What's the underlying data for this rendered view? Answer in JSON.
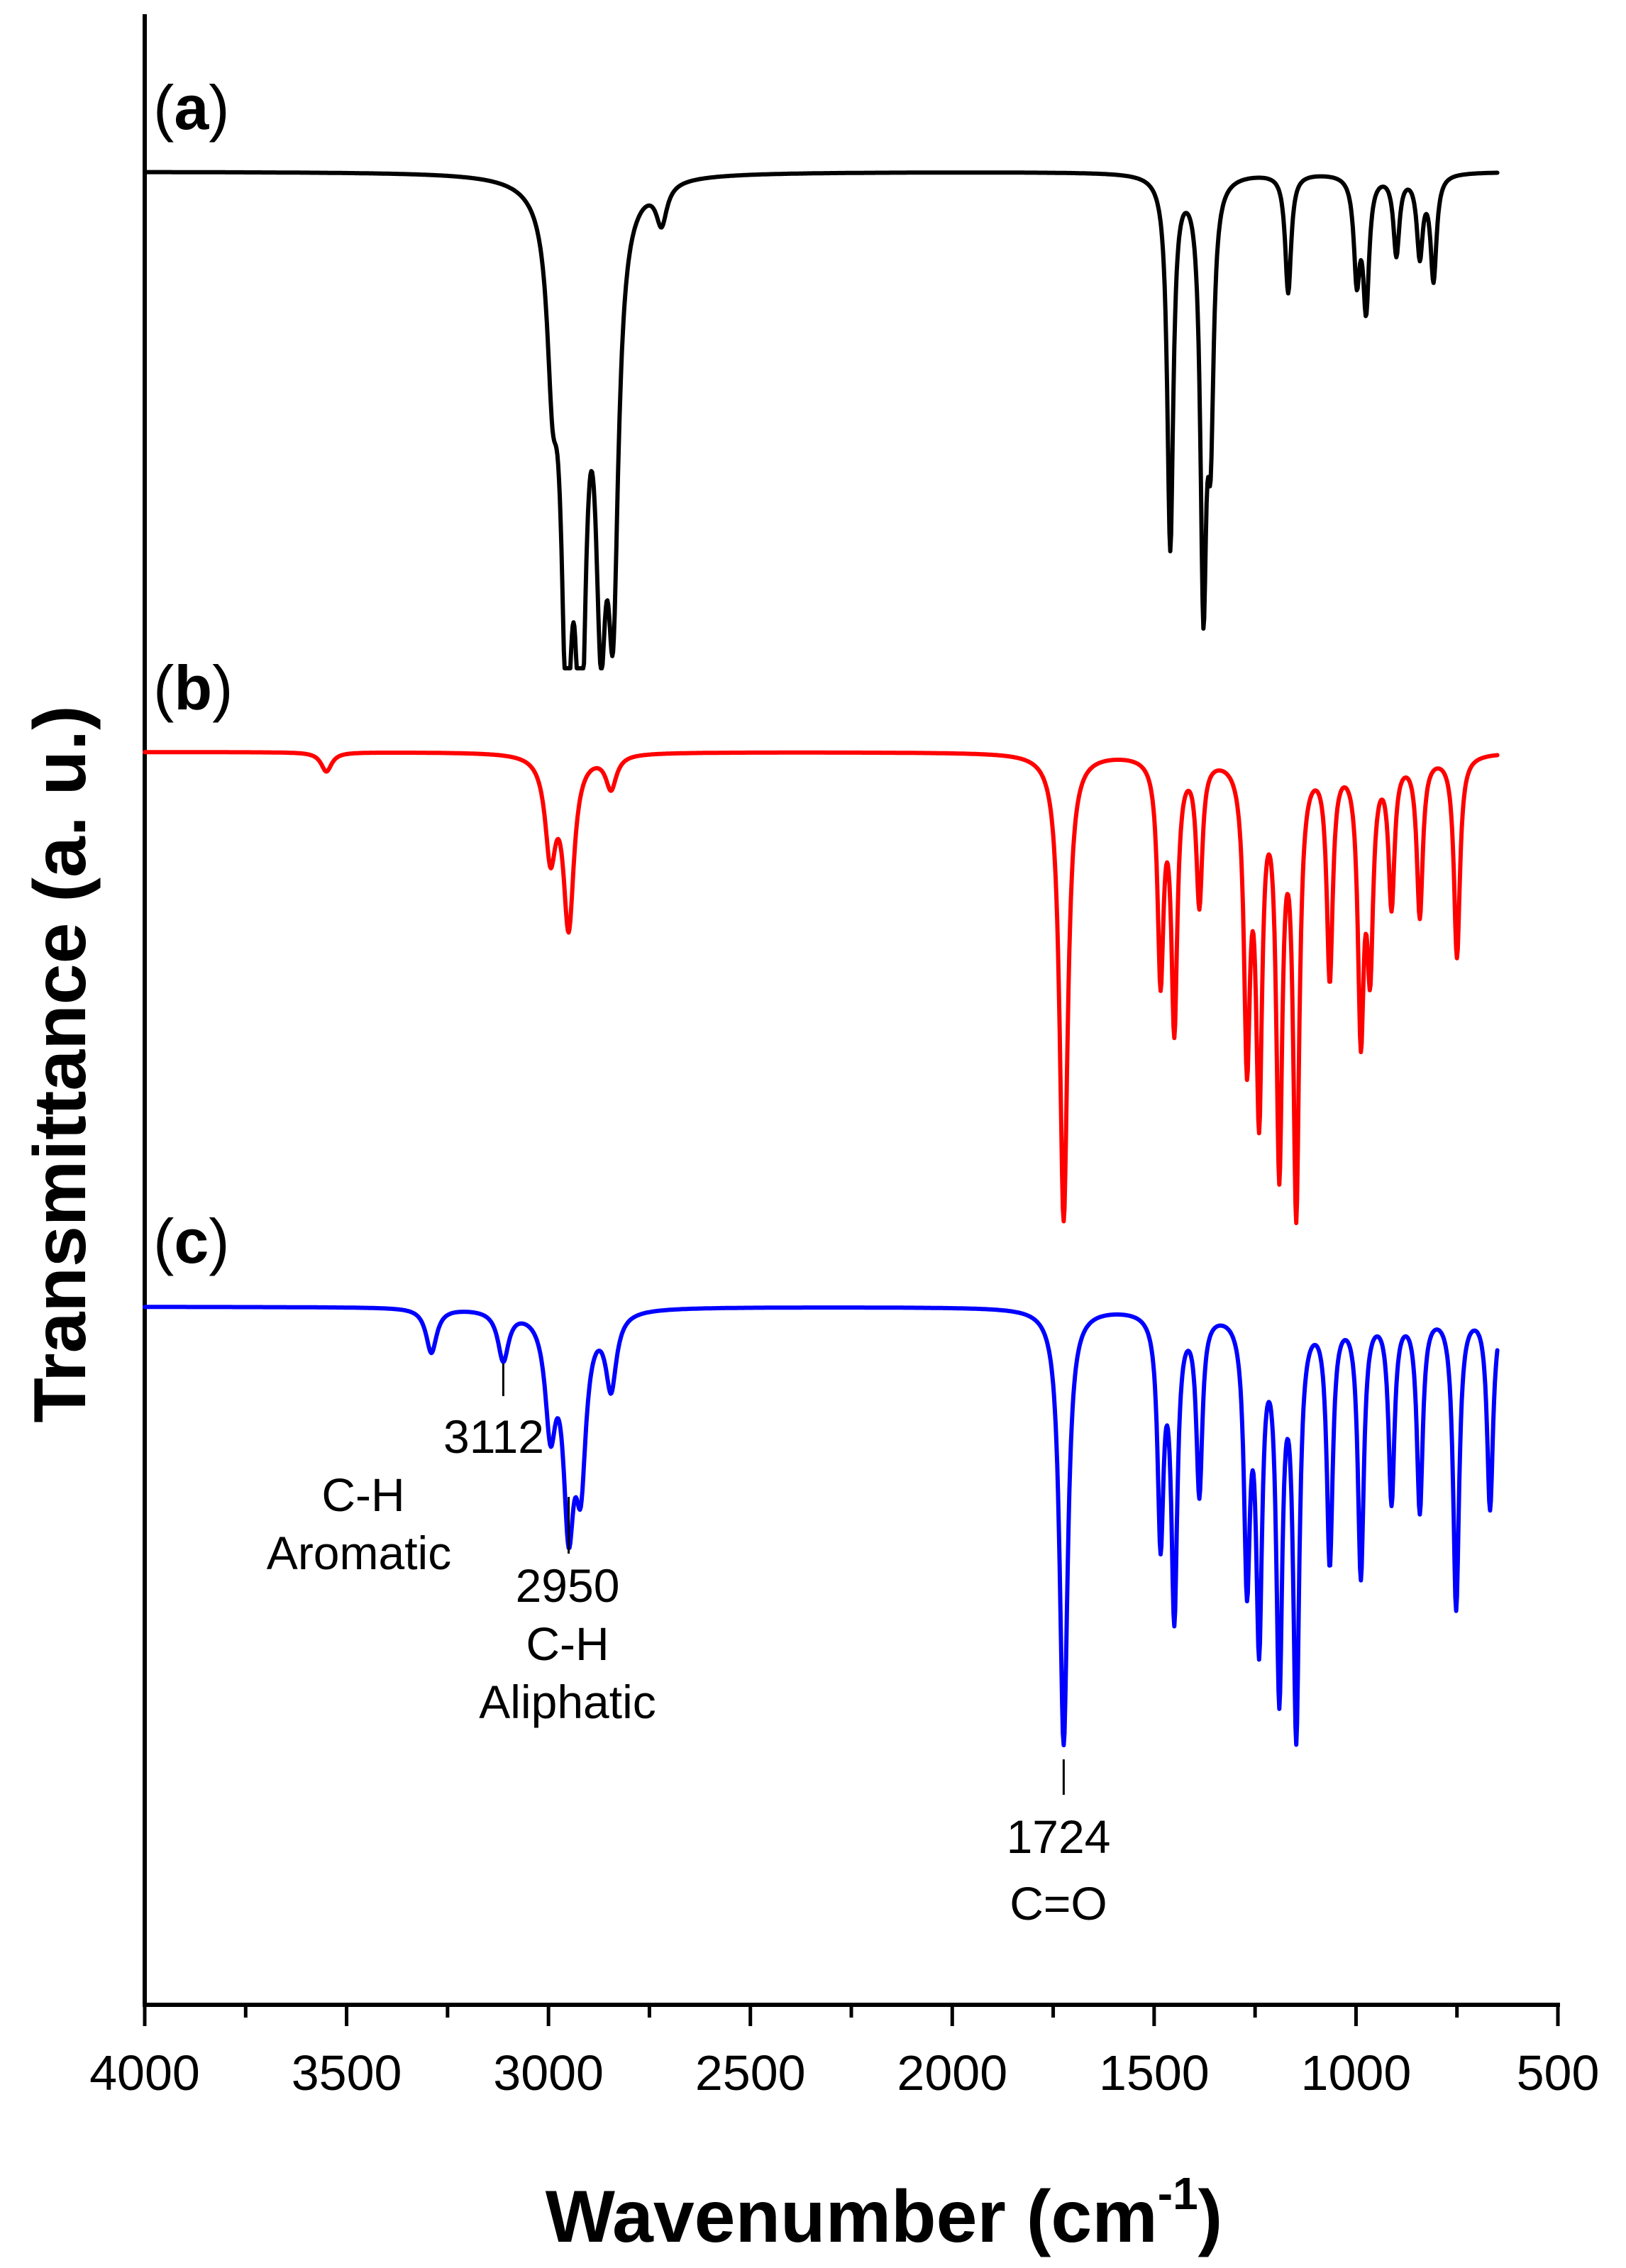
{
  "chart_data": {
    "type": "line",
    "title": "",
    "xlabel": "Wavenumber",
    "xlabel_unit_base": "(cm",
    "xlabel_unit_exp": "-1",
    "xlabel_unit_close": ")",
    "ylabel": "Transmittance (a. u.)",
    "xlim": [
      4000,
      500
    ],
    "x_reversed": true,
    "x_ticks": [
      4000,
      3500,
      3000,
      2500,
      2000,
      1500,
      1000,
      500
    ],
    "x_tick_labels": [
      "4000",
      "3500",
      "3000",
      "2500",
      "2000",
      "1500",
      "1000",
      "500"
    ],
    "y_ticks_shown": false,
    "grid": false,
    "series": [
      {
        "name": "(a)",
        "label_text": "a",
        "color": "#000000",
        "baseline": 0.0,
        "x_start": 4000,
        "x_end": 650,
        "peaks": [
          {
            "x": 2955,
            "depth": 0.88
          },
          {
            "x": 2920,
            "depth": 0.93
          },
          {
            "x": 2870,
            "depth": 0.72
          },
          {
            "x": 2840,
            "depth": 0.75
          },
          {
            "x": 2990,
            "depth": 0.3
          },
          {
            "x": 2720,
            "depth": 0.08
          },
          {
            "x": 1460,
            "depth": 0.75
          },
          {
            "x": 1378,
            "depth": 0.82
          },
          {
            "x": 1360,
            "depth": 0.45
          },
          {
            "x": 1168,
            "depth": 0.24
          },
          {
            "x": 998,
            "depth": 0.2
          },
          {
            "x": 975,
            "depth": 0.26
          },
          {
            "x": 900,
            "depth": 0.16
          },
          {
            "x": 842,
            "depth": 0.16
          },
          {
            "x": 808,
            "depth": 0.21
          }
        ]
      },
      {
        "name": "(b)",
        "label_text": "b",
        "color": "#ff0000",
        "baseline": 0.0,
        "x_start": 4000,
        "x_end": 650,
        "peaks": [
          {
            "x": 3550,
            "depth": 0.04
          },
          {
            "x": 2995,
            "depth": 0.2
          },
          {
            "x": 2950,
            "depth": 0.35
          },
          {
            "x": 2845,
            "depth": 0.07
          },
          {
            "x": 1724,
            "depth": 0.97
          },
          {
            "x": 1484,
            "depth": 0.45
          },
          {
            "x": 1450,
            "depth": 0.55
          },
          {
            "x": 1388,
            "depth": 0.3
          },
          {
            "x": 1270,
            "depth": 0.6
          },
          {
            "x": 1240,
            "depth": 0.7
          },
          {
            "x": 1190,
            "depth": 0.82
          },
          {
            "x": 1148,
            "depth": 0.92
          },
          {
            "x": 1065,
            "depth": 0.45
          },
          {
            "x": 988,
            "depth": 0.55
          },
          {
            "x": 965,
            "depth": 0.4
          },
          {
            "x": 912,
            "depth": 0.3
          },
          {
            "x": 842,
            "depth": 0.33
          },
          {
            "x": 750,
            "depth": 0.42
          }
        ]
      },
      {
        "name": "(c)",
        "label_text": "c",
        "color": "#0000ff",
        "baseline": 0.0,
        "x_start": 4000,
        "x_end": 650,
        "peaks": [
          {
            "x": 3290,
            "depth": 0.09
          },
          {
            "x": 3112,
            "depth": 0.1
          },
          {
            "x": 2995,
            "depth": 0.22
          },
          {
            "x": 2950,
            "depth": 0.39
          },
          {
            "x": 2920,
            "depth": 0.3
          },
          {
            "x": 2845,
            "depth": 0.15
          },
          {
            "x": 1724,
            "depth": 0.88
          },
          {
            "x": 1484,
            "depth": 0.45
          },
          {
            "x": 1450,
            "depth": 0.6
          },
          {
            "x": 1388,
            "depth": 0.36
          },
          {
            "x": 1270,
            "depth": 0.52
          },
          {
            "x": 1240,
            "depth": 0.63
          },
          {
            "x": 1190,
            "depth": 0.74
          },
          {
            "x": 1148,
            "depth": 0.83
          },
          {
            "x": 1065,
            "depth": 0.5
          },
          {
            "x": 988,
            "depth": 0.53
          },
          {
            "x": 912,
            "depth": 0.38
          },
          {
            "x": 842,
            "depth": 0.4
          },
          {
            "x": 752,
            "depth": 0.6
          },
          {
            "x": 668,
            "depth": 0.4
          }
        ]
      }
    ],
    "annotations": [
      {
        "x": 3112,
        "series": "(c)",
        "lines": [
          "3112",
          "C-H",
          "Aromatic"
        ]
      },
      {
        "x": 2950,
        "series": "(c)",
        "lines": [
          "2950",
          "C-H",
          "Aliphatic"
        ]
      },
      {
        "x": 1724,
        "series": "(c)",
        "lines": [
          "1724",
          "C=O"
        ]
      }
    ]
  }
}
